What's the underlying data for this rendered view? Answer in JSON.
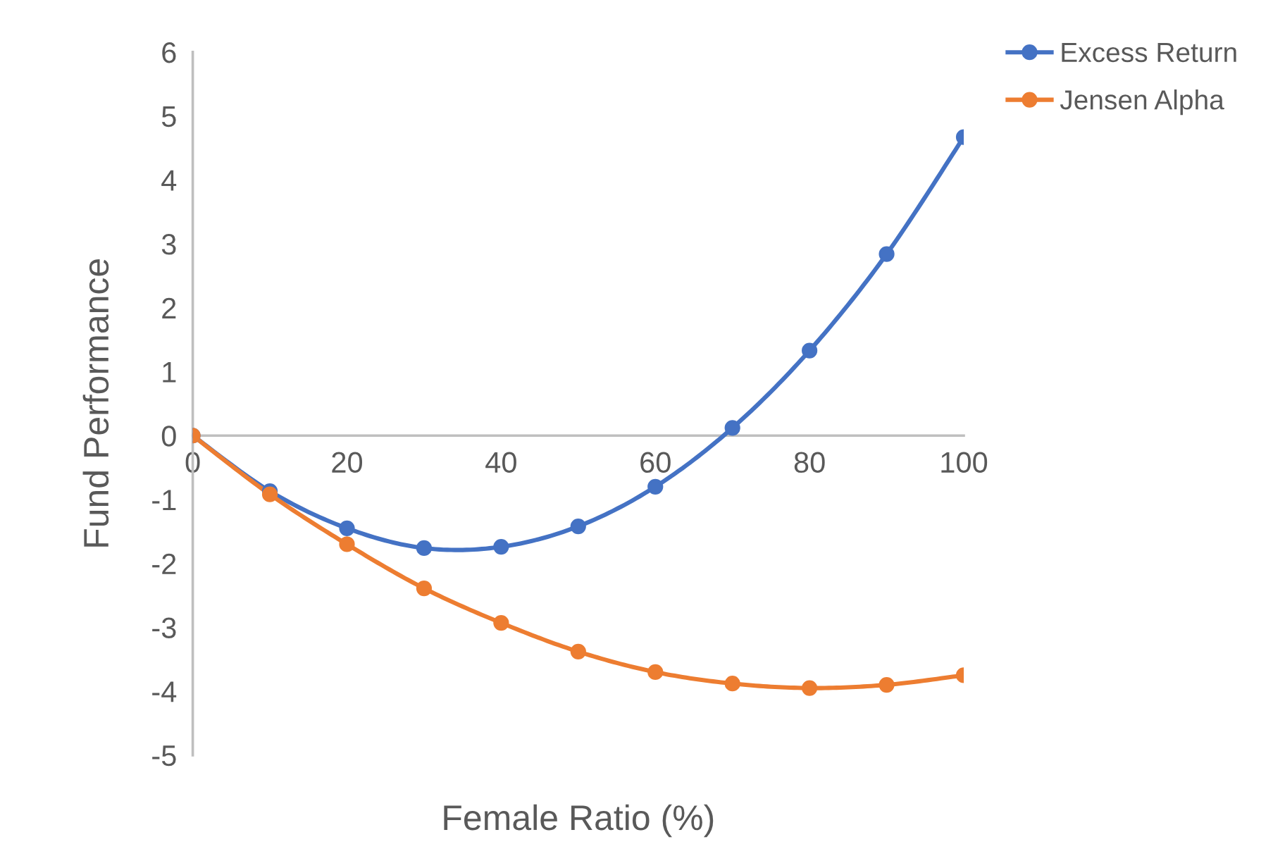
{
  "chart_data": {
    "type": "line",
    "xlabel": "Female Ratio (%)",
    "ylabel": "Fund Performance",
    "x": [
      0,
      10,
      20,
      30,
      40,
      50,
      60,
      70,
      80,
      90,
      100
    ],
    "series": [
      {
        "name": "Excess Return",
        "color": "#4472c4",
        "values": [
          0,
          -0.87,
          -1.45,
          -1.76,
          -1.74,
          -1.42,
          -0.8,
          0.12,
          1.33,
          2.84,
          4.67
        ]
      },
      {
        "name": "Jensen Alpha",
        "color": "#ed7d31",
        "values": [
          0,
          -0.92,
          -1.7,
          -2.39,
          -2.93,
          -3.38,
          -3.7,
          -3.88,
          -3.95,
          -3.9,
          -3.75
        ]
      }
    ],
    "xlim": [
      0,
      100
    ],
    "xticks": [
      0,
      20,
      40,
      60,
      80,
      100
    ],
    "ylim": [
      -5,
      6
    ],
    "yticks": [
      -5,
      -4,
      -3,
      -2,
      -1,
      0,
      1,
      2,
      3,
      4,
      5,
      6
    ],
    "grid": false,
    "legend": "top right",
    "marker": "circle",
    "line_style": "solid"
  }
}
